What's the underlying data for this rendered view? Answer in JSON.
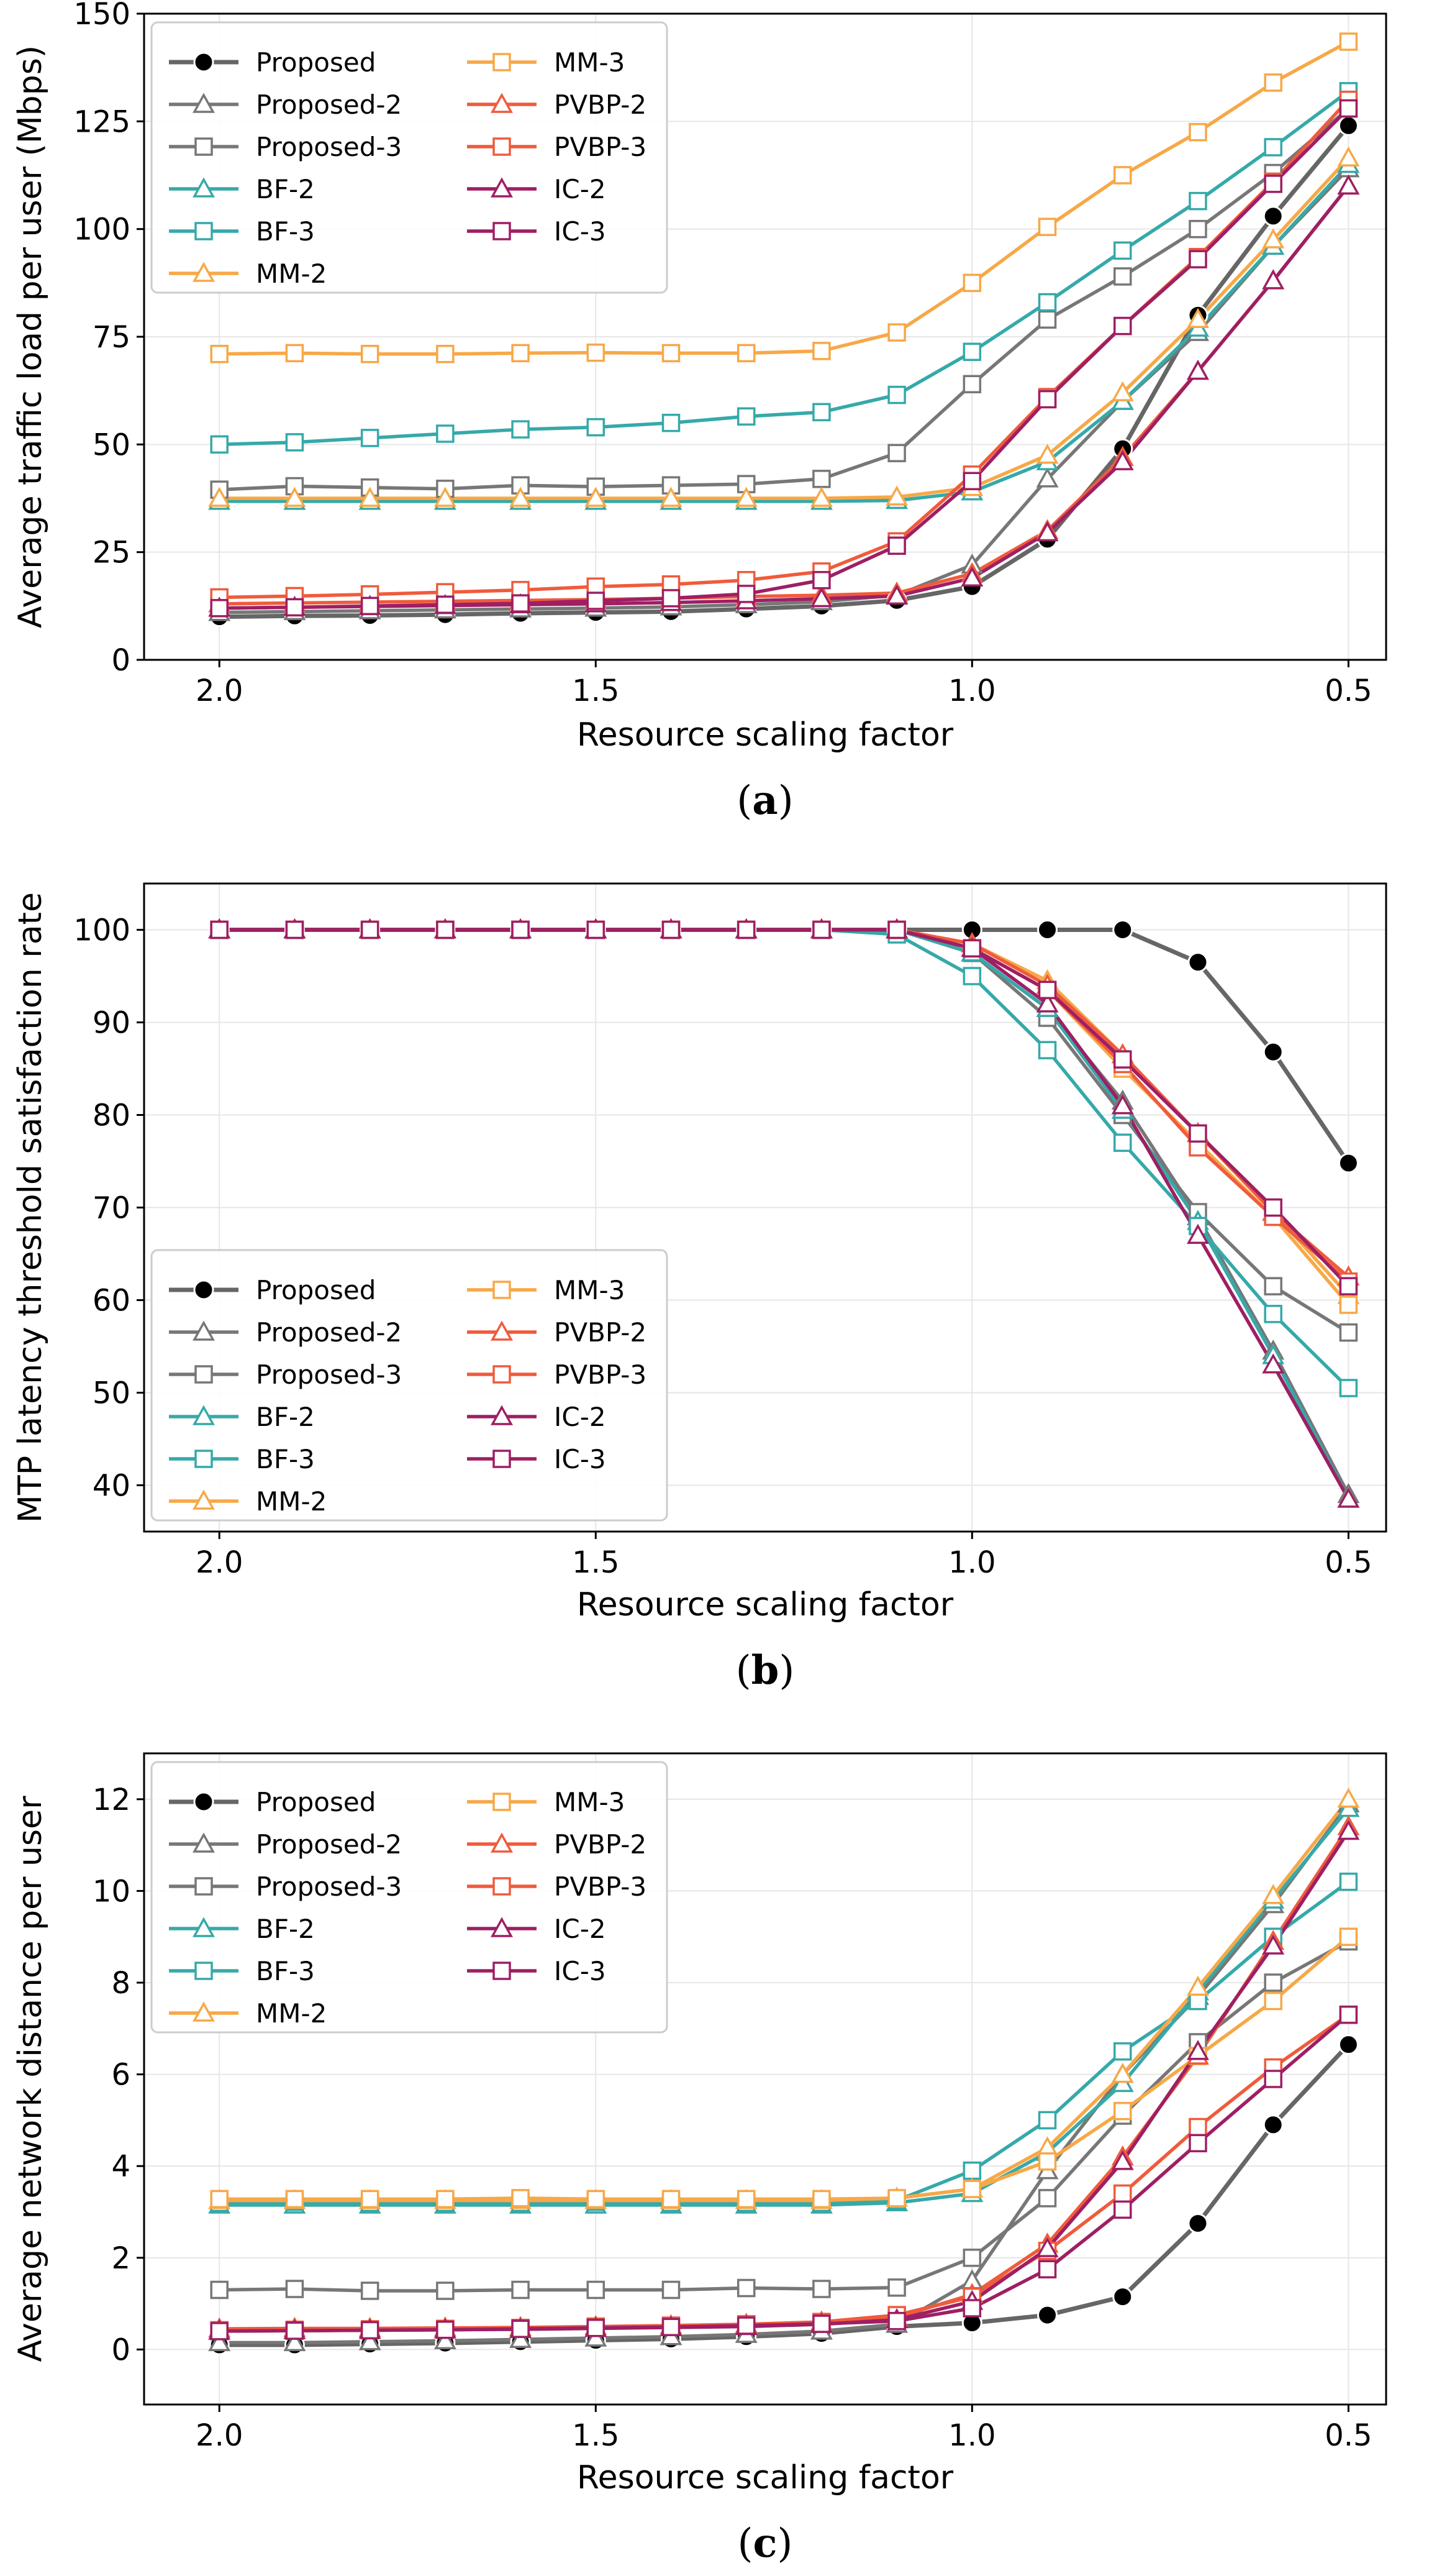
{
  "series_style": [
    {
      "name": "Proposed",
      "color": "#666666",
      "marker": "circle",
      "marker_fill": "#000000"
    },
    {
      "name": "Proposed-2",
      "color": "#777777",
      "marker": "triangle",
      "marker_fill": "#ffffff"
    },
    {
      "name": "Proposed-3",
      "color": "#777777",
      "marker": "square",
      "marker_fill": "#ffffff"
    },
    {
      "name": "BF-2",
      "color": "#36a9a9",
      "marker": "triangle",
      "marker_fill": "#ffffff"
    },
    {
      "name": "BF-3",
      "color": "#36a9a9",
      "marker": "square",
      "marker_fill": "#ffffff"
    },
    {
      "name": "MM-2",
      "color": "#f7a847",
      "marker": "triangle",
      "marker_fill": "#ffffff"
    },
    {
      "name": "MM-3",
      "color": "#f7a847",
      "marker": "square",
      "marker_fill": "#ffffff"
    },
    {
      "name": "PVBP-2",
      "color": "#ef5b3c",
      "marker": "triangle",
      "marker_fill": "#ffffff"
    },
    {
      "name": "PVBP-3",
      "color": "#ef5b3c",
      "marker": "square",
      "marker_fill": "#ffffff"
    },
    {
      "name": "IC-2",
      "color": "#9e1f63",
      "marker": "triangle",
      "marker_fill": "#ffffff"
    },
    {
      "name": "IC-3",
      "color": "#9e1f63",
      "marker": "square",
      "marker_fill": "#ffffff"
    }
  ],
  "chart_data": [
    {
      "type": "line",
      "caption": "a",
      "xlabel": "Resource scaling factor",
      "ylabel": "Average traffic load per user (Mbps)",
      "x": [
        2.0,
        1.9,
        1.8,
        1.7,
        1.6,
        1.5,
        1.4,
        1.3,
        1.2,
        1.1,
        1.0,
        0.9,
        0.8,
        0.7,
        0.6,
        0.5
      ],
      "xlim": [
        2.1,
        0.45
      ],
      "ylim": [
        0,
        150
      ],
      "xticks": [
        2.0,
        1.5,
        1.0,
        0.5
      ],
      "xtick_labels": [
        "2.0",
        "1.5",
        "1.0",
        "0.5"
      ],
      "yticks": [
        0,
        25,
        50,
        75,
        100,
        125,
        150
      ],
      "ytick_labels": [
        "0",
        "25",
        "50",
        "75",
        "100",
        "125",
        "150"
      ],
      "grid": true,
      "legend_placement": "upper-left",
      "series": [
        {
          "name": "Proposed",
          "values": [
            10,
            10.2,
            10.3,
            10.5,
            10.8,
            11,
            11.2,
            11.8,
            12.5,
            13.8,
            17,
            28,
            49,
            80,
            103,
            124
          ]
        },
        {
          "name": "Proposed-2",
          "values": [
            11,
            11.2,
            11.4,
            11.6,
            11.8,
            12,
            12.3,
            12.8,
            13.5,
            15,
            22,
            42,
            60,
            76,
            96,
            114
          ]
        },
        {
          "name": "Proposed-3",
          "values": [
            39.5,
            40.3,
            40,
            39.7,
            40.5,
            40.2,
            40.5,
            40.8,
            42,
            48,
            64,
            79,
            89,
            100,
            113,
            128
          ]
        },
        {
          "name": "BF-2",
          "values": [
            36.8,
            36.8,
            36.8,
            36.8,
            36.8,
            36.8,
            36.8,
            36.8,
            36.8,
            37,
            39,
            46,
            60,
            77,
            96,
            115
          ]
        },
        {
          "name": "BF-3",
          "values": [
            50,
            50.5,
            51.5,
            52.5,
            53.5,
            54,
            55,
            56.5,
            57.5,
            61.5,
            71.5,
            83,
            95,
            106.5,
            119,
            132
          ]
        },
        {
          "name": "MM-2",
          "values": [
            37.5,
            37.5,
            37.5,
            37.5,
            37.5,
            37.5,
            37.5,
            37.5,
            37.5,
            37.8,
            40,
            47.5,
            62,
            79,
            97.5,
            116.5
          ]
        },
        {
          "name": "MM-3",
          "values": [
            71,
            71.2,
            71,
            71,
            71.2,
            71.3,
            71.2,
            71.2,
            71.7,
            76,
            87.5,
            100.5,
            112.5,
            122.5,
            134,
            143.5
          ]
        },
        {
          "name": "PVBP-2",
          "values": [
            13,
            13.2,
            13.4,
            13.6,
            13.8,
            14,
            14.3,
            14.7,
            15,
            15.5,
            20,
            30,
            47,
            67,
            88,
            110
          ]
        },
        {
          "name": "PVBP-3",
          "values": [
            14.5,
            14.8,
            15.2,
            15.7,
            16.2,
            17,
            17.5,
            18.5,
            20.5,
            27.5,
            43,
            61,
            77.5,
            93.5,
            111,
            130
          ]
        },
        {
          "name": "IC-2",
          "values": [
            12,
            12.2,
            12.4,
            12.6,
            12.8,
            13,
            13.3,
            13.7,
            14.2,
            14.8,
            19,
            29.5,
            46,
            67,
            88,
            110
          ]
        },
        {
          "name": "IC-3",
          "values": [
            12,
            12.2,
            12.5,
            12.8,
            13.1,
            13.7,
            14.3,
            15.3,
            18.5,
            26.5,
            41.5,
            60.5,
            77.5,
            93,
            110.5,
            128
          ]
        }
      ]
    },
    {
      "type": "line",
      "caption": "b",
      "xlabel": "Resource scaling factor",
      "ylabel": "MTP latency threshold satisfaction rate",
      "x": [
        2.0,
        1.9,
        1.8,
        1.7,
        1.6,
        1.5,
        1.4,
        1.3,
        1.2,
        1.1,
        1.0,
        0.9,
        0.8,
        0.7,
        0.6,
        0.5
      ],
      "xlim": [
        2.1,
        0.45
      ],
      "ylim": [
        35,
        105
      ],
      "xticks": [
        2.0,
        1.5,
        1.0,
        0.5
      ],
      "xtick_labels": [
        "2.0",
        "1.5",
        "1.0",
        "0.5"
      ],
      "yticks": [
        40,
        50,
        60,
        70,
        80,
        90,
        100
      ],
      "ytick_labels": [
        "40",
        "50",
        "60",
        "70",
        "80",
        "90",
        "100"
      ],
      "grid": true,
      "legend_placement": "lower-left",
      "series": [
        {
          "name": "Proposed",
          "values": [
            100,
            100,
            100,
            100,
            100,
            100,
            100,
            100,
            100,
            100,
            100,
            100,
            100,
            96.5,
            86.8,
            74.8
          ]
        },
        {
          "name": "Proposed-2",
          "values": [
            100,
            100,
            100,
            100,
            100,
            100,
            100,
            100,
            100,
            100,
            97.5,
            91.5,
            81.5,
            69,
            54.5,
            39
          ]
        },
        {
          "name": "Proposed-3",
          "values": [
            100,
            100,
            100,
            100,
            100,
            100,
            100,
            100,
            100,
            100,
            97.5,
            90.5,
            80,
            69.5,
            61.5,
            56.5
          ]
        },
        {
          "name": "BF-2",
          "values": [
            100,
            100,
            100,
            100,
            100,
            100,
            100,
            100,
            100,
            100,
            97.5,
            91.5,
            80.5,
            68.5,
            54,
            38.5
          ]
        },
        {
          "name": "BF-3",
          "values": [
            100,
            100,
            100,
            100,
            100,
            100,
            100,
            100,
            100,
            99.5,
            95,
            87,
            77,
            68,
            58.5,
            50.5
          ]
        },
        {
          "name": "MM-2",
          "values": [
            100,
            100,
            100,
            100,
            100,
            100,
            100,
            100,
            100,
            100,
            98.5,
            94.5,
            86.5,
            78,
            69.5,
            60.5
          ]
        },
        {
          "name": "MM-3",
          "values": [
            100,
            100,
            100,
            100,
            100,
            100,
            100,
            100,
            100,
            100,
            98,
            93.5,
            85,
            77,
            69,
            59.5
          ]
        },
        {
          "name": "PVBP-2",
          "values": [
            100,
            100,
            100,
            100,
            100,
            100,
            100,
            100,
            100,
            100,
            98.5,
            94,
            86.5,
            78,
            69.5,
            62.5
          ]
        },
        {
          "name": "PVBP-3",
          "values": [
            100,
            100,
            100,
            100,
            100,
            100,
            100,
            100,
            100,
            100,
            98,
            93.5,
            85.5,
            76.5,
            69,
            62
          ]
        },
        {
          "name": "IC-2",
          "values": [
            100,
            100,
            100,
            100,
            100,
            100,
            100,
            100,
            100,
            100,
            98,
            92,
            81,
            67,
            53,
            38.5
          ]
        },
        {
          "name": "IC-3",
          "values": [
            100,
            100,
            100,
            100,
            100,
            100,
            100,
            100,
            100,
            100,
            98,
            93.5,
            86,
            78,
            70,
            61.5
          ]
        }
      ]
    },
    {
      "type": "line",
      "caption": "c",
      "xlabel": "Resource scaling factor",
      "ylabel": "Average network distance per user",
      "x": [
        2.0,
        1.9,
        1.8,
        1.7,
        1.6,
        1.5,
        1.4,
        1.3,
        1.2,
        1.1,
        1.0,
        0.9,
        0.8,
        0.7,
        0.6,
        0.5
      ],
      "xlim": [
        2.1,
        0.45
      ],
      "ylim": [
        -1.2,
        13
      ],
      "xticks": [
        2.0,
        1.5,
        1.0,
        0.5
      ],
      "xtick_labels": [
        "2.0",
        "1.5",
        "1.0",
        "0.5"
      ],
      "yticks": [
        0,
        2,
        4,
        6,
        8,
        10,
        12
      ],
      "ytick_labels": [
        "0",
        "2",
        "4",
        "6",
        "8",
        "10",
        "12"
      ],
      "grid": true,
      "legend_placement": "upper-left",
      "series": [
        {
          "name": "Proposed",
          "values": [
            0.1,
            0.1,
            0.12,
            0.14,
            0.17,
            0.2,
            0.23,
            0.28,
            0.35,
            0.5,
            0.58,
            0.75,
            1.15,
            2.75,
            4.9,
            6.65
          ]
        },
        {
          "name": "Proposed-2",
          "values": [
            0.15,
            0.15,
            0.17,
            0.19,
            0.22,
            0.25,
            0.28,
            0.33,
            0.4,
            0.55,
            1.5,
            3.9,
            6.0,
            7.7,
            9.7,
            11.9
          ]
        },
        {
          "name": "Proposed-3",
          "values": [
            1.3,
            1.32,
            1.28,
            1.28,
            1.3,
            1.3,
            1.3,
            1.34,
            1.32,
            1.35,
            2.0,
            3.3,
            5.1,
            6.7,
            8.0,
            8.9
          ]
        },
        {
          "name": "BF-2",
          "values": [
            3.15,
            3.15,
            3.15,
            3.15,
            3.15,
            3.15,
            3.15,
            3.15,
            3.15,
            3.2,
            3.4,
            4.3,
            5.8,
            7.8,
            9.8,
            11.8
          ]
        },
        {
          "name": "BF-3",
          "values": [
            3.2,
            3.22,
            3.2,
            3.2,
            3.2,
            3.22,
            3.2,
            3.2,
            3.2,
            3.25,
            3.9,
            5.0,
            6.5,
            7.6,
            9.0,
            10.2
          ]
        },
        {
          "name": "MM-2",
          "values": [
            3.25,
            3.25,
            3.25,
            3.25,
            3.25,
            3.25,
            3.25,
            3.25,
            3.25,
            3.3,
            3.5,
            4.4,
            6.0,
            7.9,
            9.9,
            12.0
          ]
        },
        {
          "name": "MM-3",
          "values": [
            3.28,
            3.28,
            3.28,
            3.28,
            3.3,
            3.28,
            3.28,
            3.28,
            3.28,
            3.3,
            3.5,
            4.1,
            5.2,
            6.4,
            7.6,
            9.0
          ]
        },
        {
          "name": "PVBP-2",
          "values": [
            0.45,
            0.46,
            0.46,
            0.47,
            0.48,
            0.5,
            0.52,
            0.55,
            0.6,
            0.7,
            1.2,
            2.3,
            4.2,
            6.4,
            8.9,
            11.4
          ]
        },
        {
          "name": "PVBP-3",
          "values": [
            0.42,
            0.43,
            0.44,
            0.45,
            0.47,
            0.5,
            0.52,
            0.55,
            0.6,
            0.75,
            1.15,
            2.15,
            3.4,
            4.85,
            6.15,
            7.3
          ]
        },
        {
          "name": "IC-2",
          "values": [
            0.4,
            0.41,
            0.42,
            0.43,
            0.44,
            0.46,
            0.48,
            0.5,
            0.55,
            0.65,
            1.05,
            2.2,
            4.1,
            6.5,
            8.8,
            11.3
          ]
        },
        {
          "name": "IC-3",
          "values": [
            0.4,
            0.41,
            0.42,
            0.43,
            0.45,
            0.47,
            0.49,
            0.52,
            0.56,
            0.62,
            0.9,
            1.75,
            3.05,
            4.5,
            5.9,
            7.3
          ]
        }
      ]
    }
  ]
}
